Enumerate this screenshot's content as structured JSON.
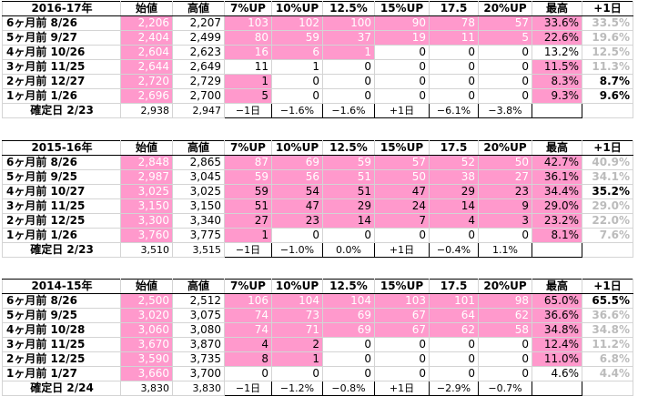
{
  "headers": [
    "始値",
    "高値",
    "7%UP",
    "10%UP",
    "12.5%",
    "15%UP",
    "17.5",
    "20%UP",
    "最高",
    "+1日"
  ],
  "tables": [
    {
      "title": "2016-17年",
      "rows": [
        {
          "label": "6ヶ月前 8/26",
          "open": "2,206",
          "high": "2,207",
          "c7": "103",
          "c10": "102",
          "c125": "100",
          "c15": "90",
          "c175": "78",
          "c20": "57",
          "max": "33.6%",
          "plus1": "33.5%"
        },
        {
          "label": "5ヶ月前 9/27",
          "open": "2,404",
          "high": "2,499",
          "c7": "80",
          "c10": "59",
          "c125": "37",
          "c15": "19",
          "c175": "11",
          "c20": "5",
          "max": "22.6%",
          "plus1": "19.6%"
        },
        {
          "label": "4ヶ月前 10/26",
          "open": "2,604",
          "high": "2,623",
          "c7": "16",
          "c10": "6",
          "c125": "1",
          "c15": "0",
          "c175": "0",
          "c20": "0",
          "max": "13.2%",
          "plus1": "12.5%"
        },
        {
          "label": "3ヶ月前 11/25",
          "open": "2,644",
          "high": "2,649",
          "c7": "11",
          "c10": "1",
          "c125": "0",
          "c15": "0",
          "c175": "0",
          "c20": "0",
          "max": "11.5%",
          "plus1": "11.3%"
        },
        {
          "label": "2ヶ月前 12/27",
          "open": "2,720",
          "high": "2,729",
          "c7": "1",
          "c10": "0",
          "c125": "0",
          "c15": "0",
          "c175": "0",
          "c20": "0",
          "max": "8.3%",
          "plus1": "8.7%"
        },
        {
          "label": "1ヶ月前 1/26",
          "open": "2,696",
          "high": "2,700",
          "c7": "5",
          "c10": "0",
          "c125": "0",
          "c15": "0",
          "c175": "0",
          "c20": "0",
          "max": "9.3%",
          "plus1": "9.6%"
        }
      ],
      "confirm": {
        "label": "確定日 2/23",
        "open": "2,938",
        "high": "2,947",
        "c7": "−1日",
        "c10": "−1.6%",
        "c125": "−1.6%",
        "c15": "+1日",
        "c175": "−6.1%",
        "c20": "−3.8%"
      }
    },
    {
      "title": "2015-16年",
      "rows": [
        {
          "label": "6ヶ月前 8/26",
          "open": "2,848",
          "high": "2,865",
          "c7": "87",
          "c10": "69",
          "c125": "59",
          "c15": "57",
          "c175": "52",
          "c20": "50",
          "max": "42.7%",
          "plus1": "40.9%"
        },
        {
          "label": "5ヶ月前 9/25",
          "open": "2,987",
          "high": "3,045",
          "c7": "59",
          "c10": "56",
          "c125": "51",
          "c15": "50",
          "c175": "38",
          "c20": "27",
          "max": "36.1%",
          "plus1": "34.1%"
        },
        {
          "label": "4ヶ月前 10/27",
          "open": "3,025",
          "high": "3,025",
          "c7": "59",
          "c10": "54",
          "c125": "51",
          "c15": "47",
          "c175": "29",
          "c20": "23",
          "max": "34.4%",
          "plus1": "35.2%"
        },
        {
          "label": "3ヶ月前 11/25",
          "open": "3,150",
          "high": "3,150",
          "c7": "51",
          "c10": "47",
          "c125": "29",
          "c15": "24",
          "c175": "14",
          "c20": "9",
          "max": "29.0%",
          "plus1": "29.0%"
        },
        {
          "label": "2ヶ月前 12/25",
          "open": "3,300",
          "high": "3,340",
          "c7": "27",
          "c10": "23",
          "c125": "14",
          "c15": "7",
          "c175": "4",
          "c20": "3",
          "max": "23.2%",
          "plus1": "22.0%"
        },
        {
          "label": "1ヶ月前 1/26",
          "open": "3,760",
          "high": "3,775",
          "c7": "1",
          "c10": "0",
          "c125": "0",
          "c15": "0",
          "c175": "0",
          "c20": "0",
          "max": "8.1%",
          "plus1": "7.6%"
        }
      ],
      "confirm": {
        "label": "確定日 2/23",
        "open": "3,510",
        "high": "3,515",
        "c7": "−1日",
        "c10": "−1.0%",
        "c125": "0.0%",
        "c15": "+1日",
        "c175": "−0.4%",
        "c20": "1.1%"
      }
    },
    {
      "title": "2014-15年",
      "rows": [
        {
          "label": "6ヶ月前 8/26",
          "open": "2,500",
          "high": "2,512",
          "c7": "106",
          "c10": "104",
          "c125": "104",
          "c15": "103",
          "c175": "101",
          "c20": "98",
          "max": "65.0%",
          "plus1": "65.5%"
        },
        {
          "label": "5ヶ月前 9/25",
          "open": "3,020",
          "high": "3,075",
          "c7": "74",
          "c10": "73",
          "c125": "69",
          "c15": "67",
          "c175": "64",
          "c20": "62",
          "max": "36.6%",
          "plus1": "36.6%"
        },
        {
          "label": "4ヶ月前 10/28",
          "open": "3,060",
          "high": "3,080",
          "c7": "74",
          "c10": "71",
          "c125": "69",
          "c15": "67",
          "c175": "62",
          "c20": "58",
          "max": "34.8%",
          "plus1": "34.8%"
        },
        {
          "label": "3ヶ月前 11/25",
          "open": "3,670",
          "high": "3,870",
          "c7": "4",
          "c10": "2",
          "c125": "0",
          "c15": "0",
          "c175": "0",
          "c20": "0",
          "max": "12.4%",
          "plus1": "11.2%"
        },
        {
          "label": "2ヶ月前 12/25",
          "open": "3,590",
          "high": "3,735",
          "c7": "8",
          "c10": "1",
          "c125": "0",
          "c15": "0",
          "c175": "0",
          "c20": "0",
          "max": "11.0%",
          "plus1": "6.8%"
        },
        {
          "label": "1ヶ月前 1/27",
          "open": "3,660",
          "high": "3,700",
          "c7": "0",
          "c10": "0",
          "c125": "0",
          "c15": "0",
          "c175": "0",
          "c20": "0",
          "max": "4.6%",
          "plus1": "4.4%"
        }
      ],
      "confirm": {
        "label": "確定日 2/24",
        "open": "3,830",
        "high": "3,830",
        "c7": "−1日",
        "c10": "−1.2%",
        "c125": "−0.8%",
        "c15": "+1日",
        "c175": "−2.9%",
        "c20": "−0.7%"
      }
    }
  ],
  "colors": {
    "pink": "#ff99cc",
    "white_text": "#ffffff",
    "gray_text": "#bbbbbb",
    "black": "#000000"
  },
  "pink_map": [
    {
      "open": [
        true,
        true,
        true,
        true,
        true,
        true
      ],
      "counts": [
        [
          true,
          true,
          true,
          true,
          true,
          true
        ],
        [
          true,
          true,
          true,
          true,
          true,
          true
        ],
        [
          true,
          true,
          true,
          false,
          false,
          false
        ],
        [
          false,
          false,
          false,
          false,
          false,
          false
        ],
        [
          true,
          false,
          false,
          false,
          false,
          false
        ],
        [
          true,
          false,
          false,
          false,
          false,
          false
        ]
      ],
      "counts_white": [
        true,
        true,
        true,
        false,
        false,
        false
      ],
      "max": [
        true,
        true,
        false,
        true,
        true,
        true
      ],
      "plus1_gray": [
        true,
        true,
        true,
        true,
        false,
        false
      ]
    },
    {
      "open": [
        true,
        true,
        true,
        true,
        true,
        true
      ],
      "counts": [
        [
          true,
          true,
          true,
          true,
          true,
          true
        ],
        [
          true,
          true,
          true,
          true,
          true,
          true
        ],
        [
          true,
          true,
          true,
          true,
          true,
          true
        ],
        [
          true,
          true,
          true,
          true,
          true,
          true
        ],
        [
          true,
          true,
          true,
          true,
          true,
          true
        ],
        [
          true,
          false,
          false,
          false,
          false,
          false
        ]
      ],
      "counts_white": [
        true,
        true,
        false,
        false,
        false,
        false
      ],
      "max": [
        true,
        true,
        true,
        true,
        true,
        true
      ],
      "plus1_gray": [
        true,
        true,
        false,
        true,
        true,
        true
      ]
    },
    {
      "open": [
        true,
        true,
        true,
        true,
        true,
        true
      ],
      "counts": [
        [
          true,
          true,
          true,
          true,
          true,
          true
        ],
        [
          true,
          true,
          true,
          true,
          true,
          true
        ],
        [
          true,
          true,
          true,
          true,
          true,
          true
        ],
        [
          true,
          true,
          false,
          false,
          false,
          false
        ],
        [
          true,
          true,
          false,
          false,
          false,
          false
        ],
        [
          false,
          false,
          false,
          false,
          false,
          false
        ]
      ],
      "counts_white": [
        true,
        true,
        true,
        false,
        false,
        false
      ],
      "max": [
        true,
        true,
        true,
        true,
        true,
        false
      ],
      "plus1_gray": [
        false,
        true,
        true,
        true,
        true,
        true
      ]
    }
  ]
}
